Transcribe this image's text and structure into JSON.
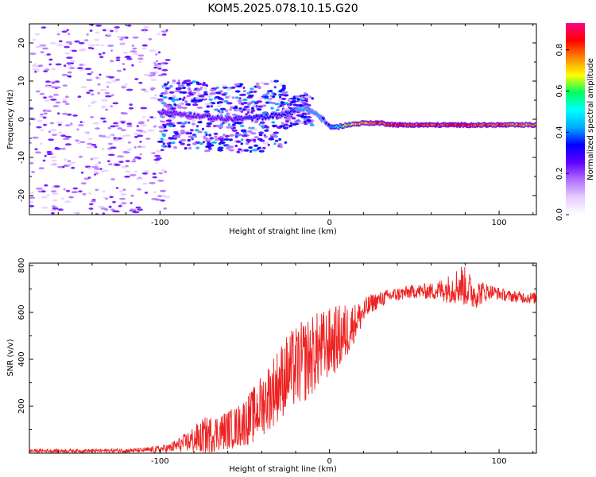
{
  "title": "KOM5.2025.078.10.15.G20",
  "chart_data": [
    {
      "type": "heatmap",
      "xlabel": "Height of straight line (km)",
      "ylabel": "Frequency (Hz)",
      "xlim": [
        -177,
        122
      ],
      "ylim": [
        -25,
        25
      ],
      "xticks": [
        -100,
        0,
        100
      ],
      "yticks": [
        -20,
        -10,
        0,
        10,
        20
      ],
      "colorbar": {
        "label": "Normalized spectral amplitude",
        "range": [
          0,
          0.93
        ],
        "ticks": [
          0.0,
          0.2,
          0.4,
          0.6,
          0.8
        ],
        "colors": [
          "#ffffff",
          "#e6ccff",
          "#b070ff",
          "#6000ff",
          "#0000ff",
          "#00aaff",
          "#00ffff",
          "#00ff60",
          "#ffff00",
          "#ff8800",
          "#ff0000",
          "#ff0088"
        ]
      },
      "ridge": {
        "description_values": "frequency peak (Hz) vs height (km)",
        "x": [
          -100,
          -80,
          -60,
          -40,
          -25,
          -15,
          -8,
          -3,
          0,
          5,
          10,
          20,
          30,
          40,
          60,
          80,
          100,
          122
        ],
        "y": [
          2,
          1,
          0,
          0.5,
          1.5,
          3,
          1.5,
          -0.5,
          -2,
          -2,
          -1.5,
          -1,
          -1,
          -1.5,
          -1.5,
          -1.5,
          -1.5,
          -1.5
        ],
        "amplitude": [
          0.25,
          0.3,
          0.3,
          0.35,
          0.35,
          0.5,
          0.45,
          0.4,
          0.4,
          0.55,
          0.7,
          0.8,
          0.85,
          0.9,
          0.9,
          0.9,
          0.85,
          0.8
        ]
      }
    },
    {
      "type": "line",
      "xlabel": "Height of straight line (km)",
      "ylabel": "SNR (v/v)",
      "xlim": [
        -177,
        122
      ],
      "ylim": [
        0,
        810
      ],
      "xticks": [
        -100,
        0,
        100
      ],
      "yticks": [
        200,
        400,
        600,
        800
      ],
      "series": [
        {
          "color": "#ee2222",
          "envelope": {
            "x": [
              -177,
              -140,
              -110,
              -95,
              -85,
              -75,
              -65,
              -55,
              -45,
              -35,
              -25,
              -15,
              -8,
              0,
              8,
              15,
              25,
              35,
              50,
              60,
              70,
              78,
              85,
              95,
              105,
              122
            ],
            "mean": [
              10,
              10,
              12,
              20,
              45,
              70,
              90,
              110,
              160,
              250,
              340,
              390,
              430,
              470,
              500,
              560,
              640,
              670,
              690,
              690,
              700,
              720,
              680,
              690,
              670,
              660
            ],
            "spread": [
              8,
              8,
              10,
              20,
              40,
              80,
              80,
              90,
              120,
              150,
              170,
              180,
              170,
              150,
              140,
              80,
              40,
              30,
              30,
              35,
              60,
              90,
              70,
              30,
              25,
              25
            ]
          }
        }
      ]
    }
  ]
}
